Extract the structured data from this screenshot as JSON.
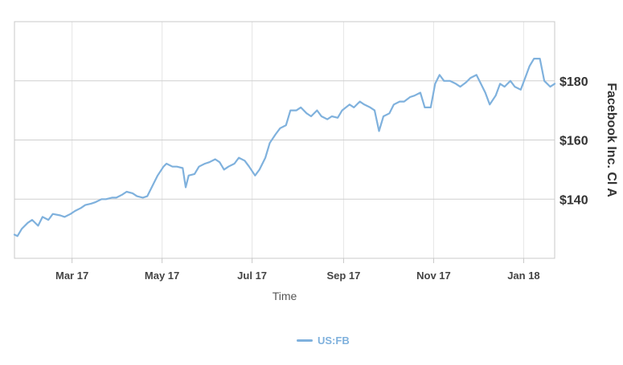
{
  "chart_data": {
    "type": "line",
    "title": "",
    "xlabel": "Time",
    "ylabel": "Facebook Inc. Cl A",
    "x_tick_labels": [
      "Mar 17",
      "May 17",
      "Jul 17",
      "Sep 17",
      "Nov 17",
      "Jan 18"
    ],
    "x_tick_dates": [
      "2017-03-01",
      "2017-05-01",
      "2017-07-01",
      "2017-09-01",
      "2017-11-01",
      "2018-01-01"
    ],
    "xlim": [
      "2017-01-21",
      "2018-01-22"
    ],
    "y_tick_labels": [
      "$140",
      "$160",
      "$180"
    ],
    "y_tick_values": [
      140,
      160,
      180
    ],
    "ylim": [
      120,
      200
    ],
    "grid": true,
    "legend_position": "bottom-center",
    "series": [
      {
        "name": "US:FB",
        "color": "#7fb1dd",
        "points": [
          [
            "2017-01-21",
            128
          ],
          [
            "2017-01-23",
            127.5
          ],
          [
            "2017-01-26",
            130
          ],
          [
            "2017-01-30",
            132
          ],
          [
            "2017-02-02",
            133
          ],
          [
            "2017-02-06",
            131
          ],
          [
            "2017-02-09",
            134
          ],
          [
            "2017-02-13",
            133
          ],
          [
            "2017-02-16",
            135
          ],
          [
            "2017-02-21",
            134.5
          ],
          [
            "2017-02-24",
            134
          ],
          [
            "2017-02-28",
            135
          ],
          [
            "2017-03-03",
            136
          ],
          [
            "2017-03-07",
            137
          ],
          [
            "2017-03-10",
            138
          ],
          [
            "2017-03-14",
            138.5
          ],
          [
            "2017-03-17",
            139
          ],
          [
            "2017-03-21",
            140
          ],
          [
            "2017-03-24",
            140
          ],
          [
            "2017-03-28",
            140.5
          ],
          [
            "2017-03-31",
            140.5
          ],
          [
            "2017-04-04",
            141.5
          ],
          [
            "2017-04-07",
            142.5
          ],
          [
            "2017-04-11",
            142
          ],
          [
            "2017-04-14",
            141
          ],
          [
            "2017-04-18",
            140.5
          ],
          [
            "2017-04-21",
            141
          ],
          [
            "2017-04-25",
            145
          ],
          [
            "2017-04-28",
            148
          ],
          [
            "2017-05-02",
            151
          ],
          [
            "2017-05-04",
            152
          ],
          [
            "2017-05-08",
            151
          ],
          [
            "2017-05-11",
            151
          ],
          [
            "2017-05-15",
            150.5
          ],
          [
            "2017-05-17",
            144
          ],
          [
            "2017-05-19",
            148
          ],
          [
            "2017-05-23",
            148.5
          ],
          [
            "2017-05-26",
            151
          ],
          [
            "2017-05-30",
            152
          ],
          [
            "2017-06-02",
            152.5
          ],
          [
            "2017-06-06",
            153.5
          ],
          [
            "2017-06-09",
            152.5
          ],
          [
            "2017-06-12",
            150
          ],
          [
            "2017-06-15",
            151
          ],
          [
            "2017-06-19",
            152
          ],
          [
            "2017-06-22",
            154
          ],
          [
            "2017-06-26",
            153
          ],
          [
            "2017-06-29",
            151
          ],
          [
            "2017-07-03",
            148
          ],
          [
            "2017-07-06",
            150
          ],
          [
            "2017-07-10",
            154
          ],
          [
            "2017-07-13",
            159
          ],
          [
            "2017-07-17",
            162
          ],
          [
            "2017-07-20",
            164
          ],
          [
            "2017-07-24",
            165
          ],
          [
            "2017-07-27",
            170
          ],
          [
            "2017-07-31",
            170
          ],
          [
            "2017-08-03",
            171
          ],
          [
            "2017-08-07",
            169
          ],
          [
            "2017-08-10",
            168
          ],
          [
            "2017-08-14",
            170
          ],
          [
            "2017-08-17",
            168
          ],
          [
            "2017-08-21",
            167
          ],
          [
            "2017-08-24",
            168
          ],
          [
            "2017-08-28",
            167.5
          ],
          [
            "2017-08-31",
            170
          ],
          [
            "2017-09-05",
            172
          ],
          [
            "2017-09-08",
            171
          ],
          [
            "2017-09-12",
            173
          ],
          [
            "2017-09-15",
            172
          ],
          [
            "2017-09-19",
            171
          ],
          [
            "2017-09-22",
            170
          ],
          [
            "2017-09-25",
            163
          ],
          [
            "2017-09-28",
            168
          ],
          [
            "2017-10-02",
            169
          ],
          [
            "2017-10-05",
            172
          ],
          [
            "2017-10-09",
            173
          ],
          [
            "2017-10-12",
            173
          ],
          [
            "2017-10-16",
            174.5
          ],
          [
            "2017-10-19",
            175
          ],
          [
            "2017-10-23",
            176
          ],
          [
            "2017-10-26",
            171
          ],
          [
            "2017-10-30",
            171
          ],
          [
            "2017-11-02",
            179
          ],
          [
            "2017-11-05",
            182
          ],
          [
            "2017-11-08",
            180
          ],
          [
            "2017-11-12",
            180
          ],
          [
            "2017-11-16",
            179
          ],
          [
            "2017-11-19",
            178
          ],
          [
            "2017-11-23",
            179.5
          ],
          [
            "2017-11-26",
            181
          ],
          [
            "2017-11-30",
            182
          ],
          [
            "2017-12-03",
            179
          ],
          [
            "2017-12-06",
            176
          ],
          [
            "2017-12-09",
            172
          ],
          [
            "2017-12-13",
            175
          ],
          [
            "2017-12-16",
            179
          ],
          [
            "2017-12-19",
            178
          ],
          [
            "2017-12-23",
            180
          ],
          [
            "2017-12-26",
            178
          ],
          [
            "2017-12-30",
            177
          ],
          [
            "2018-01-02",
            181
          ],
          [
            "2018-01-05",
            185
          ],
          [
            "2018-01-08",
            187.5
          ],
          [
            "2018-01-12",
            187.5
          ],
          [
            "2018-01-15",
            180
          ],
          [
            "2018-01-19",
            178
          ],
          [
            "2018-01-22",
            179
          ]
        ]
      }
    ]
  }
}
